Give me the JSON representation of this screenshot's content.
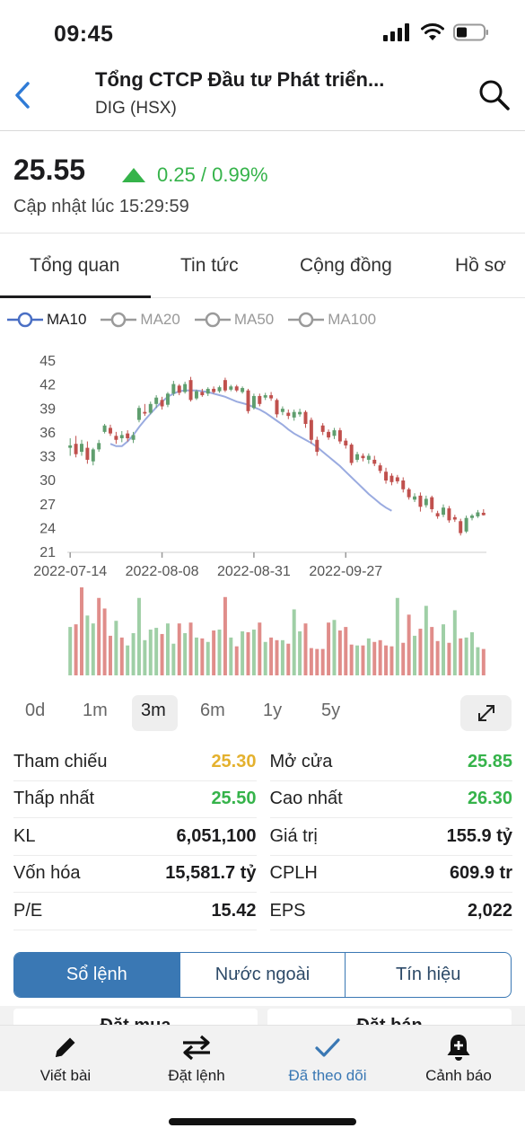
{
  "status_bar": {
    "time": "09:45"
  },
  "header": {
    "title": "Tổng CTCP Đầu tư Phát triển...",
    "subtitle": "DIG (HSX)"
  },
  "quote": {
    "price": "25.55",
    "change": "0.25 / 0.99%",
    "updated": "Cập nhật lúc 15:29:59",
    "up_color": "#35b34a"
  },
  "tabs": [
    "Tổng quan",
    "Tin tức",
    "Cộng đồng",
    "Hồ sơ"
  ],
  "ma_legend": [
    {
      "label": "MA10",
      "active": true,
      "color": "#4a6fc4"
    },
    {
      "label": "MA20",
      "active": false,
      "color": "#9a9a9a"
    },
    {
      "label": "MA50",
      "active": false,
      "color": "#9a9a9a"
    },
    {
      "label": "MA100",
      "active": false,
      "color": "#9a9a9a"
    }
  ],
  "chart_data": {
    "type": "candlestick",
    "y_ticks": [
      45,
      42,
      39,
      36,
      33,
      30,
      27,
      24,
      21
    ],
    "ylim": [
      21,
      45
    ],
    "x_labels": [
      "2022-07-14",
      "2022-08-08",
      "2022-08-31",
      "2022-09-27"
    ],
    "up_color": "#5f9e6e",
    "down_color": "#c0504d",
    "ma_color": "#9aabe0",
    "volume_up_color": "#9fcfa6",
    "volume_down_color": "#e08d8a",
    "candles": [
      [
        34.0,
        34.3,
        35.2,
        33.0
      ],
      [
        34.5,
        33.2,
        35.5,
        32.8
      ],
      [
        33.5,
        34.5,
        35.0,
        33.0
      ],
      [
        34.0,
        32.5,
        34.8,
        32.0
      ],
      [
        32.3,
        33.8,
        34.0,
        31.8
      ],
      [
        33.8,
        34.6,
        35.0,
        33.5
      ],
      [
        36.0,
        36.8,
        37.0,
        35.8
      ],
      [
        36.5,
        35.8,
        36.9,
        35.5
      ],
      [
        35.5,
        35.0,
        36.0,
        34.5
      ],
      [
        35.2,
        35.6,
        36.1,
        34.7
      ],
      [
        35.8,
        35.2,
        36.2,
        34.8
      ],
      [
        35.0,
        35.6,
        36.0,
        34.6
      ],
      [
        37.5,
        39.0,
        39.3,
        37.2
      ],
      [
        38.5,
        38.3,
        39.5,
        38.0
      ],
      [
        38.4,
        39.5,
        39.8,
        38.2
      ],
      [
        39.5,
        40.3,
        40.6,
        39.0
      ],
      [
        40.0,
        39.2,
        40.4,
        38.8
      ],
      [
        39.4,
        40.8,
        41.0,
        39.1
      ],
      [
        40.8,
        42.0,
        42.4,
        40.5
      ],
      [
        41.8,
        40.9,
        42.0,
        40.6
      ],
      [
        41.0,
        42.0,
        42.3,
        40.8
      ],
      [
        42.5,
        40.0,
        42.9,
        39.8
      ],
      [
        40.2,
        41.1,
        41.3,
        40.0
      ],
      [
        41.0,
        40.6,
        41.4,
        40.4
      ],
      [
        40.8,
        41.4,
        41.6,
        40.5
      ],
      [
        41.4,
        41.0,
        41.7,
        40.8
      ],
      [
        41.1,
        41.6,
        41.8,
        40.9
      ],
      [
        42.5,
        41.2,
        42.8,
        41.0
      ],
      [
        41.3,
        41.7,
        41.9,
        41.1
      ],
      [
        41.7,
        41.2,
        41.9,
        41.0
      ],
      [
        41.0,
        41.5,
        41.7,
        40.8
      ],
      [
        41.2,
        38.6,
        41.4,
        38.3
      ],
      [
        39.0,
        40.5,
        40.8,
        38.8
      ],
      [
        40.5,
        39.5,
        40.8,
        39.2
      ],
      [
        40.3,
        40.6,
        40.9,
        40.0
      ],
      [
        40.6,
        40.2,
        41.0,
        39.9
      ],
      [
        40.0,
        38.2,
        40.2,
        37.8
      ],
      [
        38.5,
        38.9,
        39.2,
        38.1
      ],
      [
        38.4,
        38.0,
        38.8,
        37.6
      ],
      [
        37.8,
        38.5,
        38.8,
        37.4
      ],
      [
        38.2,
        38.5,
        38.9,
        37.9
      ],
      [
        38.5,
        37.0,
        38.7,
        36.5
      ],
      [
        37.5,
        35.0,
        37.8,
        34.5
      ],
      [
        35.0,
        33.5,
        35.4,
        33.0
      ],
      [
        36.8,
        36.0,
        37.1,
        35.6
      ],
      [
        36.0,
        35.3,
        36.3,
        35.0
      ],
      [
        35.5,
        36.2,
        36.5,
        35.1
      ],
      [
        36.2,
        34.8,
        36.5,
        34.5
      ],
      [
        34.9,
        34.3,
        35.2,
        33.9
      ],
      [
        34.4,
        32.1,
        34.6,
        31.8
      ],
      [
        32.5,
        33.2,
        33.5,
        32.2
      ],
      [
        33.0,
        32.7,
        33.3,
        32.3
      ],
      [
        32.5,
        33.0,
        33.3,
        32.0
      ],
      [
        32.5,
        32.0,
        33.0,
        31.7
      ],
      [
        31.8,
        31.1,
        32.1,
        30.8
      ],
      [
        31.0,
        29.9,
        31.5,
        29.5
      ],
      [
        30.5,
        29.7,
        30.8,
        29.3
      ],
      [
        30.3,
        29.8,
        30.6,
        29.5
      ],
      [
        29.9,
        28.8,
        30.3,
        28.4
      ],
      [
        28.8,
        27.8,
        29.0,
        27.5
      ],
      [
        27.5,
        27.9,
        28.3,
        27.2
      ],
      [
        28.0,
        26.6,
        28.4,
        26.0
      ],
      [
        26.8,
        27.6,
        28.0,
        26.5
      ],
      [
        27.8,
        26.3,
        28.0,
        25.9
      ],
      [
        25.8,
        25.4,
        26.1,
        25.1
      ],
      [
        25.6,
        26.5,
        26.9,
        25.3
      ],
      [
        26.4,
        24.9,
        26.7,
        24.6
      ],
      [
        25.3,
        25.0,
        25.6,
        24.7
      ],
      [
        24.8,
        23.3,
        25.1,
        23.0
      ],
      [
        23.5,
        25.2,
        25.5,
        23.3
      ],
      [
        25.2,
        25.5,
        25.7,
        24.9
      ],
      [
        25.4,
        25.9,
        26.2,
        25.2
      ],
      [
        25.85,
        25.55,
        26.3,
        25.5
      ]
    ],
    "ma10": [
      34.5,
      34.2,
      34.2,
      34.8,
      35.6,
      36.6,
      37.5,
      38.3,
      39.1,
      39.8,
      40.4,
      40.8,
      41.1,
      41.2,
      41.2,
      41.2,
      41.1,
      41.0,
      40.8,
      40.6,
      40.4,
      40.1,
      39.8,
      39.6,
      39.4,
      39.1,
      38.8,
      38.4,
      37.9,
      37.4,
      36.9,
      36.3,
      35.8,
      35.4,
      35.0,
      34.6,
      34.1,
      33.5,
      32.9,
      32.3,
      31.7,
      31.0,
      30.3,
      29.6,
      28.9,
      28.2,
      27.6,
      27.0,
      26.5,
      26.1
    ],
    "ma10_start_index": 7,
    "volumes": [
      55,
      58,
      100,
      68,
      59,
      88,
      76,
      45,
      62,
      43,
      34,
      48,
      88,
      40,
      52,
      54,
      47,
      59,
      36,
      59,
      48,
      60,
      43,
      42,
      38,
      51,
      52,
      89,
      43,
      33,
      50,
      49,
      52,
      60,
      38,
      43,
      40,
      40,
      36,
      75,
      50,
      59,
      31,
      30,
      30,
      60,
      63,
      51,
      55,
      35,
      34,
      34,
      42,
      38,
      40,
      34,
      33,
      88,
      37,
      69,
      45,
      53,
      79,
      55,
      39,
      58,
      37,
      74,
      42,
      43,
      49,
      32,
      30
    ],
    "volume_up": [
      true,
      false,
      false,
      true,
      true,
      false,
      false,
      false,
      true,
      false,
      true,
      true,
      true,
      true,
      true,
      true,
      false,
      true,
      true,
      false,
      true,
      false,
      true,
      false,
      true,
      false,
      true,
      false,
      true,
      false,
      true,
      false,
      true,
      false,
      true,
      false,
      false,
      true,
      false,
      true,
      true,
      false,
      false,
      false,
      false,
      false,
      true,
      false,
      false,
      false,
      true,
      false,
      true,
      false,
      false,
      false,
      false,
      true,
      false,
      false,
      true,
      false,
      true,
      false,
      false,
      true,
      false,
      true,
      false,
      true,
      true,
      true,
      false
    ]
  },
  "ranges": [
    "0d",
    "1m",
    "3m",
    "6m",
    "1y",
    "5y"
  ],
  "stats": [
    {
      "left_label": "Tham chiếu",
      "left_value": "25.30",
      "left_color": "yellow",
      "right_label": "Mở cửa",
      "right_value": "25.85",
      "right_color": "green"
    },
    {
      "left_label": "Thấp nhất",
      "left_value": "25.50",
      "left_color": "green",
      "right_label": "Cao nhất",
      "right_value": "26.30",
      "right_color": "green"
    },
    {
      "left_label": "KL",
      "left_value": "6,051,100",
      "left_color": "dark",
      "right_label": "Giá trị",
      "right_value": "155.9 tỷ",
      "right_color": "dark"
    },
    {
      "left_label": "Vốn hóa",
      "left_value": "15,581.7 tỷ",
      "left_color": "dark",
      "right_label": "CPLH",
      "right_value": "609.9 tr",
      "right_color": "dark"
    },
    {
      "left_label": "P/E",
      "left_value": "15.42",
      "left_color": "dark",
      "right_label": "EPS",
      "right_value": "2,022",
      "right_color": "dark"
    }
  ],
  "segments": [
    "Sổ lệnh",
    "Nước ngoài",
    "Tín hiệu"
  ],
  "orderbook": {
    "buy_title": "Đặt mua",
    "sell_title": "Đặt bán"
  },
  "tabbar": [
    {
      "label": "Viết bài",
      "icon": "pencil-icon"
    },
    {
      "label": "Đặt lệnh",
      "icon": "swap-arrows-icon"
    },
    {
      "label": "Đã theo dõi",
      "icon": "checkmark-icon"
    },
    {
      "label": "Cảnh báo",
      "icon": "bell-plus-icon"
    }
  ]
}
